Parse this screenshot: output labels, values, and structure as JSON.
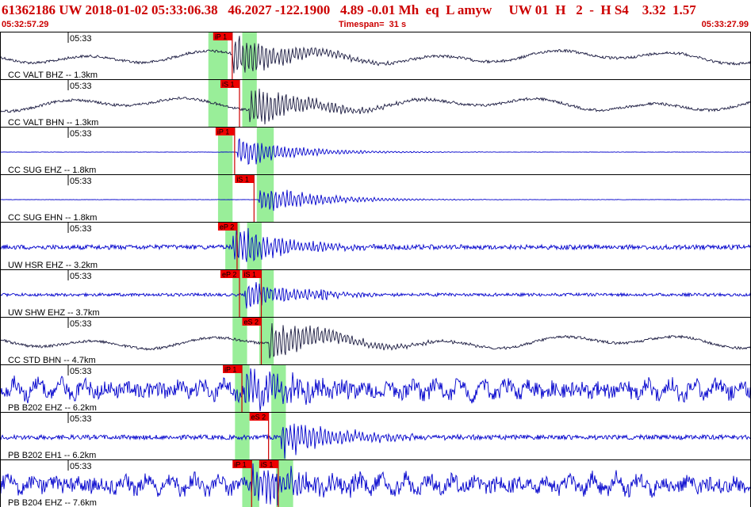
{
  "header": {
    "title": "61362186 UW 2018-01-02 05:33:06.38   46.2027 -122.1900   4.89 -0.01 Mh  eq  L amyw     UW 01  H   2  -  H S4    3.32  1.57",
    "start_time": "05:32:57.29",
    "timespan": "Timespan=  31 s",
    "end_time": "05:33:27.99"
  },
  "colors": {
    "title": "#cc0000",
    "trace_black": "#1a1a40",
    "trace_blue": "#0000cc",
    "pick_box": "#ee0000",
    "pick_line": "#cc0000",
    "window": "#99ee99",
    "panel_border": "#000000"
  },
  "chart_data": {
    "type": "line",
    "title": "61362186 UW 2018-01-02 05:33:06.38   46.2027 -122.1900   4.89 -0.01 Mh  eq  L amyw     UW 01  H   2  -  H S4    3.32  1.57",
    "x_start": "05:32:57.29",
    "x_end": "05:33:27.99",
    "timespan_s": 31,
    "minute_label": "05:33",
    "channels": [
      {
        "label": "CC VALT BHZ -- 1.3km",
        "color": "black",
        "style": "low",
        "onset_s": 9.6,
        "picks": [
          {
            "text": "iP 1",
            "t": 8.8
          }
        ],
        "windows": [
          [
            8.6,
            9.4
          ],
          [
            10.0,
            10.6
          ]
        ]
      },
      {
        "label": "CC VALT BHN -- 1.3km",
        "color": "black",
        "style": "low",
        "onset_s": 10.3,
        "picks": [
          {
            "text": "iS 1",
            "t": 9.1
          }
        ],
        "windows": [
          [
            8.6,
            9.4
          ],
          [
            10.0,
            10.6
          ]
        ]
      },
      {
        "label": "CC SUG EHZ -- 1.8km",
        "color": "blue",
        "style": "quiet",
        "onset_s": 9.8,
        "picks": [
          {
            "text": "iP 1",
            "t": 8.9
          }
        ],
        "windows": [
          [
            9.0,
            9.6
          ],
          [
            10.6,
            11.3
          ]
        ]
      },
      {
        "label": "CC SUG EHN -- 1.8km",
        "color": "blue",
        "style": "quiet",
        "onset_s": 10.7,
        "picks": [
          {
            "text": "iS 1",
            "t": 9.7
          }
        ],
        "windows": [
          [
            9.0,
            9.6
          ],
          [
            10.6,
            11.3
          ]
        ]
      },
      {
        "label": "UW HSR EHZ -- 3.2km",
        "color": "blue",
        "style": "mid",
        "onset_s": 9.6,
        "picks": [
          {
            "text": "eP 2",
            "t": 9.0
          }
        ],
        "windows": [
          [
            9.3,
            9.9
          ],
          [
            10.2,
            10.8
          ]
        ]
      },
      {
        "label": "UW SHW EHZ -- 3.7km",
        "color": "blue",
        "style": "burst",
        "onset_s": 10.1,
        "picks": [
          {
            "text": "eP 2",
            "t": 9.1
          },
          {
            "text": "iS 1",
            "t": 10.0
          }
        ],
        "windows": [
          [
            9.6,
            10.2
          ],
          [
            10.7,
            11.3
          ]
        ]
      },
      {
        "label": "CC STD BHN -- 4.7km",
        "color": "black",
        "style": "low",
        "onset_s": 11.1,
        "picks": [
          {
            "text": "eS 2",
            "t": 10.0
          }
        ],
        "windows": [
          [
            9.6,
            10.2
          ],
          [
            10.7,
            11.3
          ]
        ]
      },
      {
        "label": "PB B202 EHZ -- 6.2km",
        "color": "blue",
        "style": "noisy",
        "onset_s": 10.1,
        "picks": [
          {
            "text": "iP 1",
            "t": 9.2
          }
        ],
        "windows": [
          [
            9.7,
            10.3
          ],
          [
            11.2,
            11.8
          ]
        ]
      },
      {
        "label": "PB B202 EH1 -- 6.2km",
        "color": "blue",
        "style": "mid",
        "onset_s": 11.6,
        "picks": [
          {
            "text": "eS 2",
            "t": 10.3
          }
        ],
        "windows": [
          [
            9.7,
            10.3
          ],
          [
            11.2,
            11.8
          ]
        ]
      },
      {
        "label": "PB B204 EHZ -- 7.6km",
        "color": "blue",
        "style": "noisy",
        "onset_s": 10.4,
        "picks": [
          {
            "text": "iP 1",
            "t": 9.6
          },
          {
            "text": "iS 1",
            "t": 10.7
          }
        ],
        "windows": [
          [
            10.0,
            10.7
          ],
          [
            11.4,
            12.1
          ]
        ]
      }
    ]
  }
}
